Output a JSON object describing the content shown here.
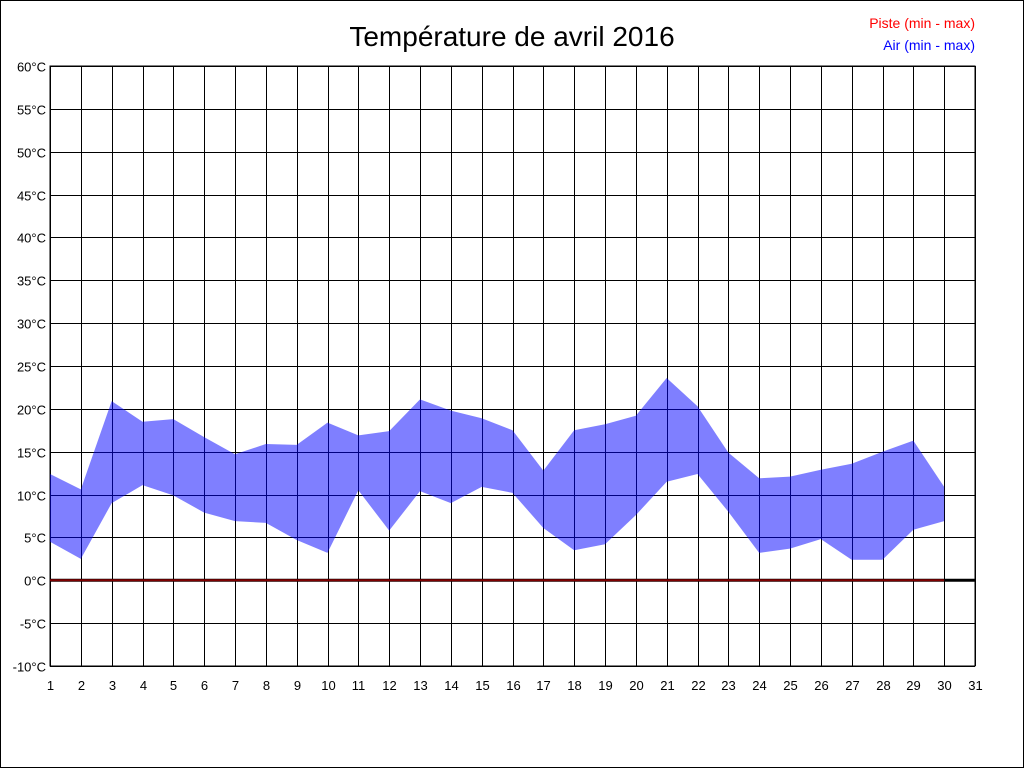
{
  "chart_data": {
    "type": "area",
    "title": "Température de avril 2016",
    "xlabel": "",
    "ylabel": "",
    "x": [
      1,
      2,
      3,
      4,
      5,
      6,
      7,
      8,
      9,
      10,
      11,
      12,
      13,
      14,
      15,
      16,
      17,
      18,
      19,
      20,
      21,
      22,
      23,
      24,
      25,
      26,
      27,
      28,
      29,
      30
    ],
    "xlim": [
      1,
      31
    ],
    "xticks": [
      "1",
      "2",
      "3",
      "4",
      "5",
      "6",
      "7",
      "8",
      "9",
      "10",
      "11",
      "12",
      "13",
      "14",
      "15",
      "16",
      "17",
      "18",
      "19",
      "20",
      "21",
      "22",
      "23",
      "24",
      "25",
      "26",
      "27",
      "28",
      "29",
      "30",
      "31"
    ],
    "ylim": [
      -10,
      60
    ],
    "yticks": [
      "-10°C",
      "-5°C",
      "0°C",
      "5°C",
      "10°C",
      "15°C",
      "20°C",
      "25°C",
      "30°C",
      "35°C",
      "40°C",
      "45°C",
      "50°C",
      "55°C",
      "60°C"
    ],
    "ytick_values": [
      -10,
      -5,
      0,
      5,
      10,
      15,
      20,
      25,
      30,
      35,
      40,
      45,
      50,
      55,
      60
    ],
    "grid": true,
    "legend_position": "top-right",
    "series": [
      {
        "name": "Piste (min - max)",
        "color": "#ff0000",
        "line_color": "#800000",
        "min": [
          0,
          0,
          0,
          0,
          0,
          0,
          0,
          0,
          0,
          0,
          0,
          0,
          0,
          0,
          0,
          0,
          0,
          0,
          0,
          0,
          0,
          0,
          0,
          0,
          0,
          0,
          0,
          0,
          0,
          0
        ],
        "max": [
          0,
          0,
          0,
          0,
          0,
          0,
          0,
          0,
          0,
          0,
          0,
          0,
          0,
          0,
          0,
          0,
          0,
          0,
          0,
          0,
          0,
          0,
          0,
          0,
          0,
          0,
          0,
          0,
          0,
          0
        ]
      },
      {
        "name": "Air (min - max)",
        "color": "#0000ff",
        "fill": "#8080ff",
        "max": [
          12.4,
          10.6,
          20.9,
          18.5,
          18.8,
          16.7,
          14.7,
          15.9,
          15.8,
          18.4,
          16.9,
          17.4,
          21.1,
          19.8,
          18.9,
          17.5,
          12.8,
          17.5,
          18.2,
          19.2,
          23.6,
          20.3,
          14.9,
          11.9,
          12.1,
          12.9,
          13.6,
          15.0,
          16.3,
          10.9
        ],
        "min": [
          4.5,
          2.5,
          9.0,
          11.1,
          9.9,
          7.9,
          6.9,
          6.7,
          4.7,
          3.2,
          10.5,
          5.8,
          10.4,
          9.0,
          10.9,
          10.2,
          6.1,
          3.5,
          4.2,
          7.6,
          11.5,
          12.4,
          8.0,
          3.2,
          3.7,
          4.8,
          2.4,
          2.4,
          5.9,
          6.9
        ]
      }
    ]
  }
}
